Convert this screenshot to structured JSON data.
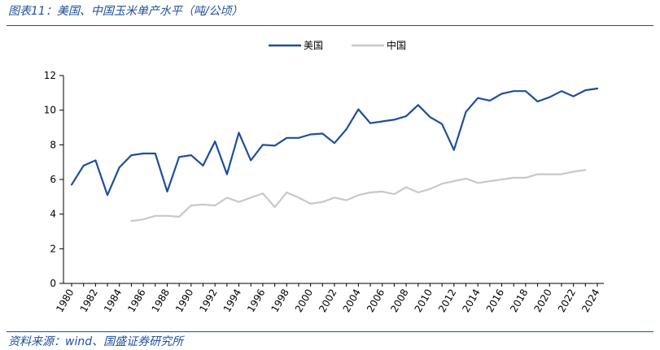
{
  "header": {
    "figure_title": "图表11：美国、中国玉米单产水平（吨/公顷）"
  },
  "footer": {
    "source": "资料来源：wind、国盛证券研究所"
  },
  "colors": {
    "us": "#1f4e9a",
    "china": "#c8c8c8",
    "axis": "#000000",
    "rule": "#1f4e9a"
  },
  "chart_data": {
    "type": "line",
    "title": "美国、中国玉米单产水平（吨/公顷）",
    "xlabel": "",
    "ylabel": "",
    "xlim": [
      1980,
      2024
    ],
    "ylim": [
      0,
      12
    ],
    "yticks": [
      0,
      2,
      4,
      6,
      8,
      10,
      12
    ],
    "xticks": [
      "1980",
      "1982",
      "1984",
      "1986",
      "1988",
      "1990",
      "1992",
      "1994",
      "1996",
      "1998",
      "2000",
      "2002",
      "2004",
      "2006",
      "2008",
      "2010",
      "2012",
      "2014",
      "2016",
      "2018",
      "2020",
      "2022",
      "2024"
    ],
    "grid": false,
    "legend_position": "top-center",
    "series": [
      {
        "name": "美国",
        "color": "#1f4e9a",
        "x": [
          1980,
          1981,
          1982,
          1983,
          1984,
          1985,
          1986,
          1987,
          1988,
          1989,
          1990,
          1991,
          1992,
          1993,
          1994,
          1995,
          1996,
          1997,
          1998,
          1999,
          2000,
          2001,
          2002,
          2003,
          2004,
          2005,
          2006,
          2007,
          2008,
          2009,
          2010,
          2011,
          2012,
          2013,
          2014,
          2015,
          2016,
          2017,
          2018,
          2019,
          2020,
          2021,
          2022,
          2023,
          2024
        ],
        "values": [
          5.7,
          6.8,
          7.1,
          5.1,
          6.7,
          7.4,
          7.5,
          7.5,
          5.3,
          7.3,
          7.4,
          6.8,
          8.2,
          6.3,
          8.7,
          7.1,
          8.0,
          7.95,
          8.4,
          8.4,
          8.6,
          8.65,
          8.1,
          8.9,
          10.05,
          9.25,
          9.35,
          9.45,
          9.65,
          10.3,
          9.6,
          9.2,
          7.7,
          9.9,
          10.7,
          10.55,
          10.95,
          11.1,
          11.1,
          10.5,
          10.75,
          11.1,
          10.8,
          11.15,
          11.25
        ]
      },
      {
        "name": "中国",
        "color": "#c8c8c8",
        "x": [
          1985,
          1986,
          1987,
          1988,
          1989,
          1990,
          1991,
          1992,
          1993,
          1994,
          1995,
          1996,
          1997,
          1998,
          1999,
          2000,
          2001,
          2002,
          2003,
          2004,
          2005,
          2006,
          2007,
          2008,
          2009,
          2010,
          2011,
          2012,
          2013,
          2014,
          2015,
          2016,
          2017,
          2018,
          2019,
          2020,
          2021,
          2022,
          2023
        ],
        "values": [
          3.6,
          3.7,
          3.9,
          3.9,
          3.85,
          4.5,
          4.55,
          4.5,
          4.95,
          4.7,
          4.95,
          5.2,
          4.4,
          5.25,
          4.95,
          4.6,
          4.7,
          4.95,
          4.8,
          5.1,
          5.25,
          5.3,
          5.15,
          5.55,
          5.25,
          5.45,
          5.75,
          5.9,
          6.05,
          5.8,
          5.9,
          6.0,
          6.1,
          6.1,
          6.3,
          6.3,
          6.3,
          6.45,
          6.55
        ]
      }
    ]
  }
}
